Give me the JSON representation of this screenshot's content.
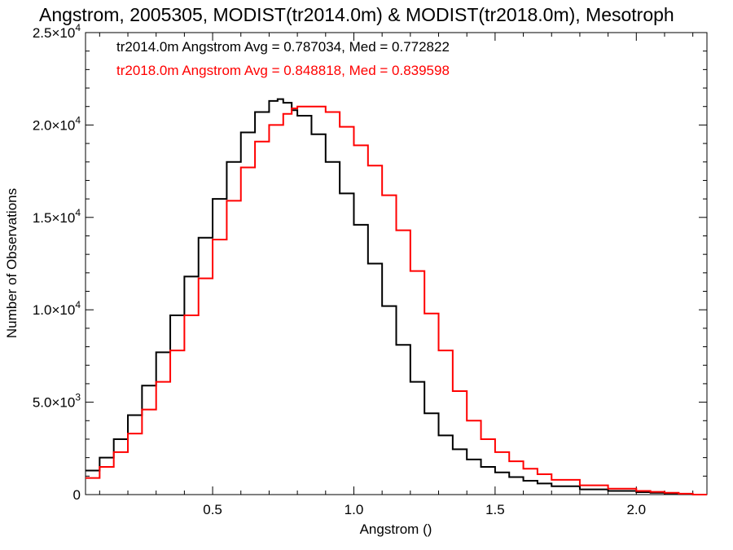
{
  "chart_data": {
    "type": "line",
    "title": "Angstrom, 2005305, MODIST(tr2014.0m) & MODIST(tr2018.0m), Mesotroph",
    "xlabel": "Angstrom ()",
    "ylabel": "Number of Observations",
    "xlim": [
      0.05,
      2.25
    ],
    "ylim": [
      0,
      25000
    ],
    "xticks": [
      0.5,
      1.0,
      1.5,
      2.0
    ],
    "xtick_labels": [
      "0.5",
      "1.0",
      "1.5",
      "2.0"
    ],
    "yticks": [
      0,
      5000,
      10000,
      15000,
      20000,
      25000
    ],
    "ytick_labels": [
      {
        "mant": "0",
        "exp": ""
      },
      {
        "mant": "5.0×10",
        "exp": "3"
      },
      {
        "mant": "1.0×10",
        "exp": "4"
      },
      {
        "mant": "1.5×10",
        "exp": "4"
      },
      {
        "mant": "2.0×10",
        "exp": "4"
      },
      {
        "mant": "2.5×10",
        "exp": "4"
      }
    ],
    "grid": false,
    "legend_placement": "top-left",
    "series": [
      {
        "legend": "tr2014.0m Angstrom Avg = 0.787034, Med = 0.772822",
        "color": "#000000",
        "x": [
          0.05,
          0.1,
          0.15,
          0.2,
          0.25,
          0.3,
          0.35,
          0.4,
          0.45,
          0.5,
          0.55,
          0.6,
          0.65,
          0.7,
          0.73,
          0.75,
          0.78,
          0.8,
          0.85,
          0.9,
          0.95,
          1.0,
          1.05,
          1.1,
          1.15,
          1.2,
          1.25,
          1.3,
          1.35,
          1.4,
          1.45,
          1.5,
          1.55,
          1.6,
          1.65,
          1.7,
          1.8,
          1.9,
          2.0,
          2.05,
          2.1,
          2.15
        ],
        "y": [
          1300,
          2000,
          3000,
          4300,
          5900,
          7700,
          9700,
          11800,
          13900,
          16000,
          18000,
          19600,
          20700,
          21300,
          21400,
          21200,
          20800,
          20500,
          19500,
          18000,
          16300,
          14600,
          12500,
          10200,
          8100,
          6100,
          4400,
          3200,
          2450,
          1900,
          1500,
          1200,
          950,
          750,
          600,
          450,
          280,
          200,
          130,
          100,
          70,
          40
        ]
      },
      {
        "legend": "tr2018.0m Angstrom Avg = 0.848818, Med = 0.839598",
        "color": "#ff0000",
        "x": [
          0.05,
          0.1,
          0.15,
          0.2,
          0.25,
          0.3,
          0.35,
          0.4,
          0.45,
          0.5,
          0.55,
          0.6,
          0.65,
          0.7,
          0.75,
          0.78,
          0.8,
          0.85,
          0.88,
          0.9,
          0.95,
          1.0,
          1.05,
          1.1,
          1.15,
          1.2,
          1.25,
          1.3,
          1.35,
          1.4,
          1.45,
          1.5,
          1.55,
          1.6,
          1.65,
          1.7,
          1.8,
          1.9,
          2.0,
          2.05,
          2.1,
          2.15,
          2.2,
          2.25
        ],
        "y": [
          900,
          1500,
          2300,
          3300,
          4600,
          6100,
          7800,
          9700,
          11700,
          13800,
          15900,
          17700,
          19100,
          20000,
          20600,
          20900,
          21000,
          21000,
          21000,
          20700,
          19900,
          18900,
          17800,
          16200,
          14300,
          12100,
          9800,
          7800,
          5600,
          4000,
          3000,
          2300,
          1800,
          1400,
          1100,
          800,
          500,
          320,
          200,
          150,
          100,
          50,
          0,
          0
        ]
      }
    ]
  }
}
